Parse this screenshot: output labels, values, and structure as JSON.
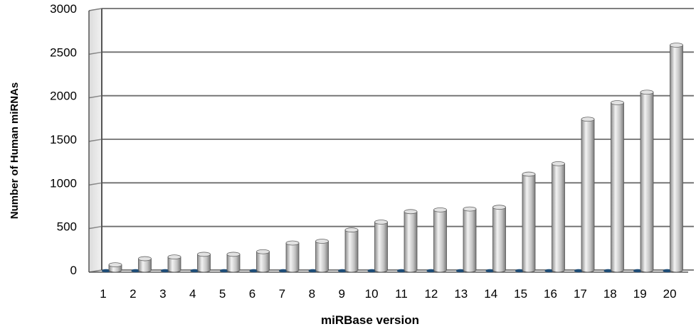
{
  "chart_data": {
    "type": "bar",
    "title": "",
    "xlabel": "miRBase version",
    "ylabel": "Number of Human miRNAs",
    "categories": [
      "1",
      "2",
      "3",
      "4",
      "5",
      "6",
      "7",
      "8",
      "9",
      "10",
      "11",
      "12",
      "13",
      "14",
      "15",
      "16",
      "17",
      "18",
      "19",
      "20"
    ],
    "y_ticks": [
      "0",
      "500",
      "1000",
      "1500",
      "2000",
      "2500",
      "3000"
    ],
    "ylim": [
      0,
      3000
    ],
    "grid": true,
    "legend": "none",
    "series": [
      {
        "values": [
          60,
          130,
          150,
          180,
          180,
          210,
          310,
          330,
          460,
          550,
          670,
          690,
          700,
          720,
          1100,
          1220,
          1730,
          1920,
          2040,
          2580
        ],
        "color": "#b4b4b4"
      },
      {
        "values": [
          0,
          0,
          0,
          0,
          0,
          0,
          0,
          0,
          0,
          0,
          0,
          0,
          0,
          0,
          0,
          0,
          0,
          0,
          0,
          0
        ],
        "color": "#1f4e79"
      }
    ]
  }
}
